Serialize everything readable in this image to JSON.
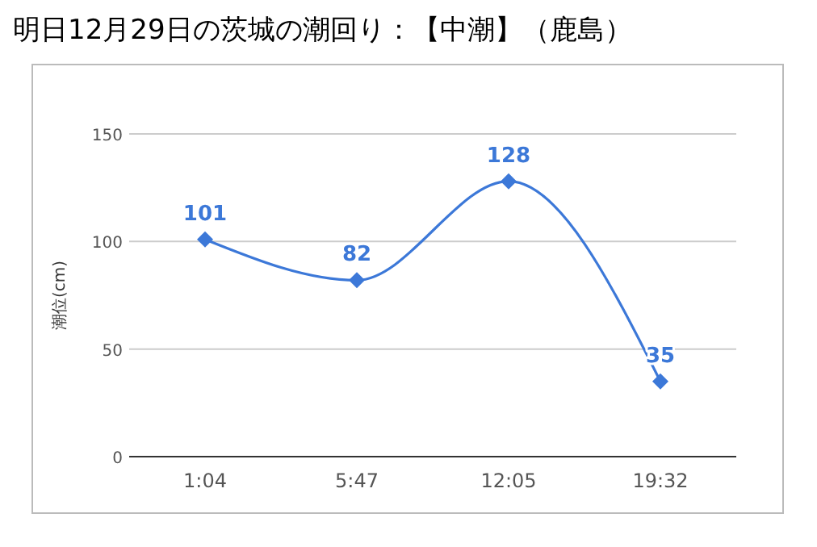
{
  "chart_data": {
    "type": "line",
    "title": "明日12月29日の茨城の潮回り：【中潮】（鹿島）",
    "ylabel": "潮位(cm)",
    "categories": [
      "1:04",
      "5:47",
      "12:05",
      "19:32"
    ],
    "series": [
      {
        "color": "#3c78d8",
        "values": [
          101,
          82,
          128,
          35
        ]
      }
    ],
    "ylim": [
      0,
      150
    ],
    "yticks": [
      0,
      50,
      100,
      150
    ],
    "grid": "y",
    "marker": "diamond",
    "line_style": "solid",
    "data_labels": true
  }
}
